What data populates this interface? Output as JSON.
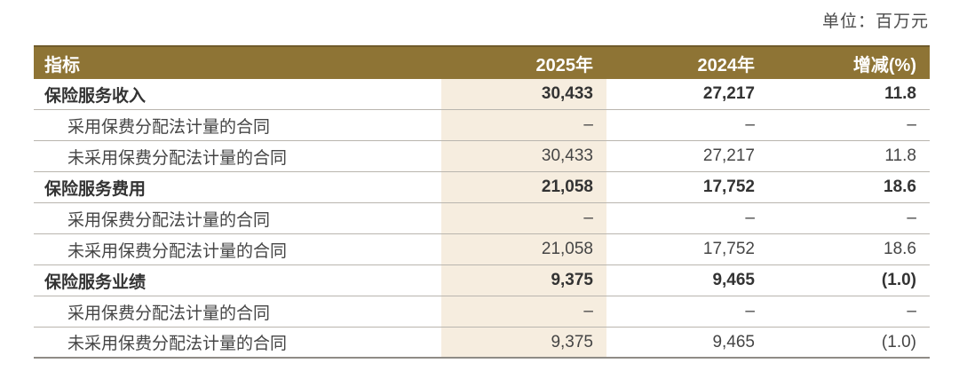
{
  "unit_label": "单位：百万元",
  "colors": {
    "header_background": "#8E7435",
    "header_top_border": "#6F5B2B",
    "highlight_column": "#F6EDDF",
    "row_separator": "#B9B5AE",
    "bottom_border": "#8F8C86",
    "header_text": "#FFFFFF",
    "body_text": "#454545"
  },
  "table": {
    "headers": {
      "indicator": "指标",
      "y2025": "2025年",
      "y2024": "2024年",
      "change": "增减(%)"
    },
    "rows": [
      {
        "label": "保险服务收入",
        "v2025": "30,433",
        "v2024": "27,217",
        "change": "11.8",
        "bold": true,
        "indent": false
      },
      {
        "label": "采用保费分配法计量的合同",
        "v2025": "–",
        "v2024": "–",
        "change": "–",
        "bold": false,
        "indent": true
      },
      {
        "label": "未采用保费分配法计量的合同",
        "v2025": "30,433",
        "v2024": "27,217",
        "change": "11.8",
        "bold": false,
        "indent": true
      },
      {
        "label": "保险服务费用",
        "v2025": "21,058",
        "v2024": "17,752",
        "change": "18.6",
        "bold": true,
        "indent": false
      },
      {
        "label": "采用保费分配法计量的合同",
        "v2025": "–",
        "v2024": "–",
        "change": "–",
        "bold": false,
        "indent": true
      },
      {
        "label": "未采用保费分配法计量的合同",
        "v2025": "21,058",
        "v2024": "17,752",
        "change": "18.6",
        "bold": false,
        "indent": true
      },
      {
        "label": "保险服务业绩",
        "v2025": "9,375",
        "v2024": "9,465",
        "change": "(1.0)",
        "bold": true,
        "indent": false
      },
      {
        "label": "采用保费分配法计量的合同",
        "v2025": "–",
        "v2024": "–",
        "change": "–",
        "bold": false,
        "indent": true
      },
      {
        "label": "未采用保费分配法计量的合同",
        "v2025": "9,375",
        "v2024": "9,465",
        "change": "(1.0)",
        "bold": false,
        "indent": true
      }
    ]
  }
}
